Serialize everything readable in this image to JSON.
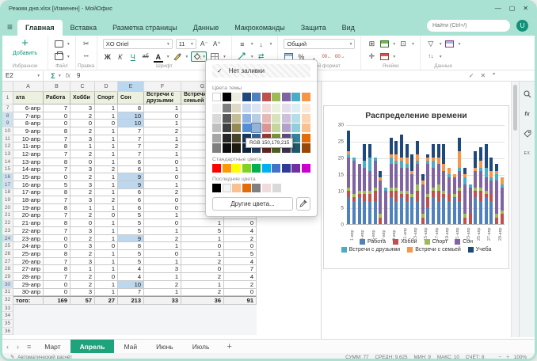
{
  "window": {
    "title": "Режим дня.xlsx [Изменен] - МойОфис"
  },
  "icons": {
    "minimize": "—",
    "maximize": "▢",
    "close": "✕",
    "hamburger": "≡",
    "check": "✓",
    "cross": "✕",
    "caret": "▾",
    "sigma": "Σ",
    "fx": "fx",
    "scissors": "✂",
    "dots": "•••",
    "plus": "+",
    "percent": "%",
    "comma": ",",
    "align": "≡",
    "valign": "↓",
    "wrap": "⇄",
    "filter": "▽",
    "sort": "↑↓",
    "chev_left": "‹",
    "chev_right": "›",
    "pencil": "✎",
    "minus": "−",
    "dec_left": "00←",
    "dec_right": "00→",
    "merge": "⊞",
    "move": "✛",
    "freeze": "⊡",
    "spell": "ЕХ"
  },
  "menu": {
    "tabs": [
      "Главная",
      "Вставка",
      "Разметка страницы",
      "Данные",
      "Макрокоманды",
      "Защита",
      "Вид"
    ],
    "active_tab": "Главная",
    "search_placeholder": "Найти (Ctrl+/)",
    "avatar": "U"
  },
  "toolbar": {
    "add_label": "Добавить",
    "font_name": "XO Oriel",
    "font_size": "11",
    "number_format": "Общий",
    "bold": "Ж",
    "italic": "К",
    "underline": "Ч",
    "strike": "аб",
    "color_a": "А",
    "groups": {
      "favorites": "Избранное",
      "file": "Файл",
      "edit": "Правка",
      "font": "Шрифт",
      "number": "Числовой формат",
      "cells": "Ячейки",
      "data": "Данные"
    }
  },
  "formula_bar": {
    "cell_ref": "E2",
    "value": "9"
  },
  "grid": {
    "column_letters": [
      "A",
      "B",
      "C",
      "D",
      "E",
      "F",
      "G",
      "H"
    ],
    "selected_column": "E",
    "headers": [
      "ата",
      "Работа",
      "Хобби",
      "Спорт",
      "Сон",
      "Встречи с друзьями",
      "Встречи с семьей",
      "Учеба"
    ],
    "rows": [
      {
        "n": 7,
        "date": "6-апр",
        "values": [
          7,
          3,
          1,
          8,
          1,
          0,
          0
        ]
      },
      {
        "n": 8,
        "date": "7-апр",
        "values": [
          0,
          2,
          1,
          10,
          0,
          1,
          2
        ]
      },
      {
        "n": 9,
        "date": "8-апр",
        "values": [
          0,
          0,
          0,
          10,
          1,
          0,
          0
        ]
      },
      {
        "n": 10,
        "date": "9-апр",
        "values": [
          8,
          2,
          1,
          7,
          2,
          1,
          5
        ]
      },
      {
        "n": 11,
        "date": "10-апр",
        "values": [
          7,
          3,
          1,
          7,
          1,
          2,
          4
        ]
      },
      {
        "n": 12,
        "date": "11-апр",
        "values": [
          8,
          1,
          1,
          7,
          2,
          1,
          7
        ]
      },
      {
        "n": 13,
        "date": "12-апр",
        "values": [
          7,
          2,
          1,
          7,
          1,
          2,
          4
        ]
      },
      {
        "n": 14,
        "date": "13-апр",
        "values": [
          8,
          0,
          1,
          6,
          0,
          1,
          5
        ]
      },
      {
        "n": 15,
        "date": "14-апр",
        "values": [
          7,
          3,
          2,
          6,
          1,
          2,
          4
        ]
      },
      {
        "n": 16,
        "date": "15-апр",
        "values": [
          0,
          2,
          1,
          9,
          0,
          1,
          2
        ]
      },
      {
        "n": 17,
        "date": "16-апр",
        "values": [
          5,
          3,
          1,
          9,
          1,
          1,
          1
        ]
      },
      {
        "n": 18,
        "date": "17-апр",
        "values": [
          8,
          2,
          1,
          6,
          2,
          1,
          4
        ]
      },
      {
        "n": 19,
        "date": "18-апр",
        "values": [
          7,
          3,
          2,
          6,
          0,
          2,
          4
        ]
      },
      {
        "n": 20,
        "date": "19-апр",
        "values": [
          8,
          1,
          1,
          6,
          0,
          2,
          6
        ]
      },
      {
        "n": 21,
        "date": "20-апр",
        "values": [
          7,
          2,
          0,
          5,
          1,
          2,
          0
        ]
      },
      {
        "n": 22,
        "date": "21-апр",
        "values": [
          8,
          0,
          1,
          5,
          0,
          1,
          0
        ]
      },
      {
        "n": 23,
        "date": "22-апр",
        "values": [
          7,
          3,
          1,
          5,
          1,
          5,
          4
        ]
      },
      {
        "n": 24,
        "date": "23-апр",
        "values": [
          0,
          2,
          1,
          9,
          2,
          1,
          2
        ]
      },
      {
        "n": 25,
        "date": "24-апр",
        "values": [
          0,
          3,
          0,
          8,
          1,
          0,
          0
        ]
      },
      {
        "n": 26,
        "date": "25-апр",
        "values": [
          8,
          2,
          1,
          5,
          0,
          1,
          5
        ]
      },
      {
        "n": 27,
        "date": "26-апр",
        "values": [
          7,
          3,
          1,
          5,
          1,
          2,
          4
        ]
      },
      {
        "n": 28,
        "date": "27-апр",
        "values": [
          8,
          1,
          1,
          4,
          3,
          0,
          7
        ]
      },
      {
        "n": 29,
        "date": "28-апр",
        "values": [
          7,
          2,
          0,
          4,
          1,
          2,
          4
        ]
      },
      {
        "n": 30,
        "date": "29-апр",
        "values": [
          0,
          2,
          1,
          10,
          2,
          1,
          2
        ]
      },
      {
        "n": 31,
        "date": "30-апр",
        "values": [
          0,
          3,
          1,
          7,
          1,
          2,
          0
        ]
      }
    ],
    "total": {
      "n": 32,
      "label": "того:",
      "values": [
        169,
        57,
        27,
        213,
        33,
        36,
        91
      ]
    },
    "empty_rows": [
      33,
      34,
      35,
      36
    ],
    "highlight_rows": [
      8,
      9,
      16,
      17,
      24,
      30
    ]
  },
  "fill_dropdown": {
    "no_fill": "Нет заливки",
    "theme_label": "Цвета темы",
    "standard_label": "Стандартные цвета",
    "recent_label": "Последние цвета",
    "other_colors": "Другие цвета...",
    "tooltip": "RGB 150,179,215",
    "theme_colors": [
      "#FFFFFF",
      "#000000",
      "#EEECE1",
      "#1F497D",
      "#4F81BD",
      "#C0504D",
      "#9BBB59",
      "#8064A2",
      "#4BACC6",
      "#F79646"
    ],
    "shade_rows": [
      [
        "#F2F2F2",
        "#7F7F7F",
        "#DDD9C3",
        "#C6D9F0",
        "#DBE5F1",
        "#F2DCDB",
        "#EBF1DD",
        "#E5DFEC",
        "#DBEEF3",
        "#FDEADA"
      ],
      [
        "#D9D9D9",
        "#595959",
        "#C4BD97",
        "#8DB3E2",
        "#B8CCE4",
        "#E5B9B7",
        "#D7E3BC",
        "#CCC1D9",
        "#B7DDE8",
        "#FBD5B5"
      ],
      [
        "#BFBFBF",
        "#3F3F3F",
        "#948A54",
        "#548DD4",
        "#95B3D7",
        "#D99694",
        "#C3D69B",
        "#B2A2C7",
        "#92CDDC",
        "#FAC08F"
      ],
      [
        "#A6A6A6",
        "#262626",
        "#4A452A",
        "#17365D",
        "#366092",
        "#953734",
        "#76923C",
        "#5F497A",
        "#31859B",
        "#E36C09"
      ],
      [
        "#7F7F7F",
        "#0C0C0C",
        "#1D1B10",
        "#0F243E",
        "#244061",
        "#632423",
        "#4F6128",
        "#3F3151",
        "#205867",
        "#974806"
      ]
    ],
    "standard_colors": [
      "#FF0000",
      "#FF9900",
      "#FFFF00",
      "#7ED321",
      "#00B050",
      "#00B0F0",
      "#4472C4",
      "#2E3B97",
      "#7030A0",
      "#CC00CC"
    ],
    "recent_colors": [
      "#000000",
      "#F5F5F5",
      "#FAC090",
      "#E36C09",
      "#808080",
      "#F2DCDB",
      "#D9D9D9"
    ],
    "hovered": {
      "row": 2,
      "col": 4,
      "color": "#95B3D7"
    }
  },
  "chart_data": {
    "type": "bar",
    "stacked": true,
    "title": "Распределение времени",
    "ylim": [
      0,
      30
    ],
    "yticks": [
      0,
      5,
      10,
      15,
      20,
      25,
      30
    ],
    "grid": true,
    "legend_position": "bottom",
    "categories": [
      "1-апр",
      "2-апр",
      "3-апр",
      "4-апр",
      "5-апр",
      "6-апр",
      "7-апр",
      "8-апр",
      "9-апр",
      "10-апр",
      "11-апр",
      "12-апр",
      "13-апр",
      "14-апр",
      "15-апр",
      "16-апр",
      "17-апр",
      "18-апр",
      "19-апр",
      "20-апр",
      "21-апр",
      "22-апр",
      "23-апр",
      "24-апр",
      "25-апр",
      "26-апр",
      "27-апр",
      "28-апр",
      "29-апр",
      "30-апр"
    ],
    "series": [
      {
        "name": "Работа",
        "color": "#4F81BD",
        "values": [
          8,
          7,
          8,
          7,
          7,
          7,
          0,
          0,
          8,
          7,
          8,
          7,
          8,
          7,
          0,
          5,
          8,
          7,
          8,
          7,
          8,
          7,
          0,
          0,
          8,
          7,
          8,
          7,
          0,
          0
        ]
      },
      {
        "name": "Хобби",
        "color": "#C0504D",
        "values": [
          2,
          1,
          1,
          2,
          2,
          3,
          2,
          0,
          2,
          3,
          1,
          2,
          0,
          3,
          2,
          3,
          2,
          3,
          1,
          2,
          0,
          3,
          2,
          3,
          2,
          3,
          1,
          2,
          2,
          3
        ]
      },
      {
        "name": "Спорт",
        "color": "#9BBB59",
        "values": [
          1,
          1,
          1,
          1,
          1,
          1,
          1,
          0,
          1,
          1,
          1,
          1,
          1,
          2,
          1,
          1,
          1,
          2,
          1,
          0,
          1,
          1,
          1,
          0,
          1,
          1,
          1,
          0,
          1,
          1
        ]
      },
      {
        "name": "Сон",
        "color": "#8064A2",
        "values": [
          9,
          10,
          8,
          7,
          6,
          8,
          10,
          10,
          7,
          7,
          7,
          7,
          6,
          6,
          9,
          9,
          6,
          6,
          6,
          5,
          5,
          5,
          9,
          8,
          5,
          5,
          4,
          4,
          10,
          7
        ]
      },
      {
        "name": "Встречи с друзьями",
        "color": "#4BACC6",
        "values": [
          1,
          1,
          0,
          2,
          4,
          1,
          0,
          1,
          2,
          1,
          2,
          1,
          0,
          1,
          0,
          1,
          2,
          0,
          0,
          1,
          0,
          1,
          2,
          1,
          0,
          1,
          3,
          1,
          2,
          1
        ]
      },
      {
        "name": "Встречи с семьей",
        "color": "#F79646",
        "values": [
          1,
          0,
          0,
          0,
          0,
          0,
          1,
          0,
          1,
          2,
          1,
          2,
          1,
          2,
          1,
          1,
          1,
          2,
          2,
          2,
          1,
          5,
          1,
          0,
          1,
          2,
          0,
          2,
          1,
          2
        ]
      },
      {
        "name": "Учеба",
        "color": "#1F497D",
        "values": [
          6,
          0,
          0,
          5,
          4,
          0,
          2,
          0,
          5,
          4,
          7,
          4,
          5,
          4,
          2,
          1,
          4,
          4,
          6,
          0,
          0,
          4,
          2,
          0,
          5,
          4,
          7,
          4,
          2,
          0
        ]
      }
    ]
  },
  "sheet_bar": {
    "tabs": [
      "Март",
      "Апрель",
      "Май",
      "Июнь",
      "Июль"
    ],
    "active": "Апрель"
  },
  "status_bar": {
    "left": "Автоматический расчёт",
    "stats": [
      {
        "label": "СУММ",
        "value": "77"
      },
      {
        "label": "СРЕДН",
        "value": "9,625"
      },
      {
        "label": "МИН",
        "value": "9"
      },
      {
        "label": "МАКС",
        "value": "10"
      },
      {
        "label": "СЧЁТ",
        "value": "8"
      }
    ],
    "zoom": "100%"
  }
}
